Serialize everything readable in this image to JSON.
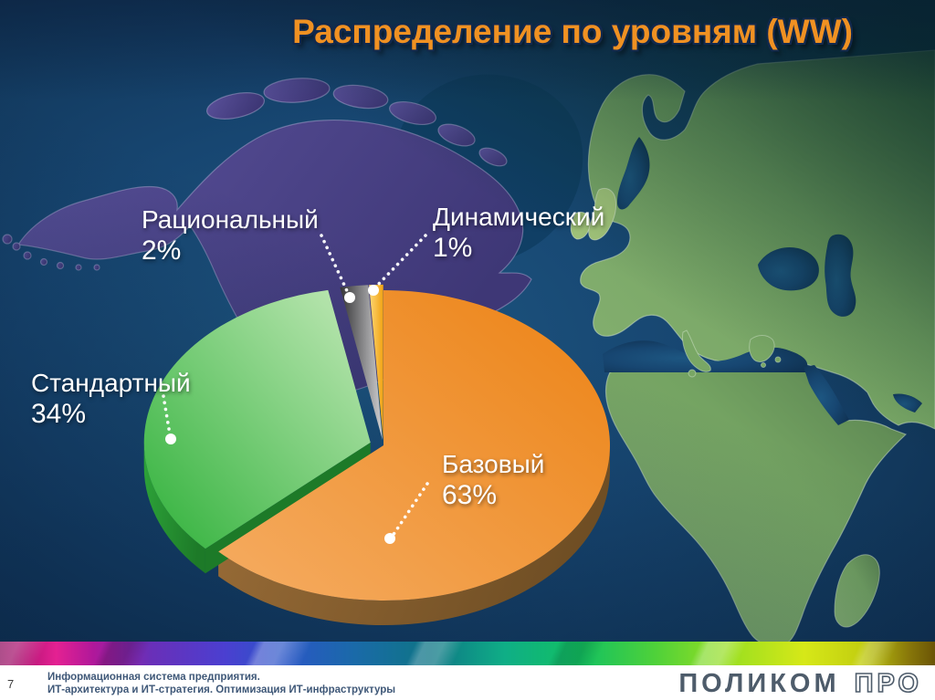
{
  "slide": {
    "title": "Распределение по уровням (WW)",
    "page_number": "7",
    "footer_line1": "Информационная система предприятия.",
    "footer_line2": "ИТ-архитектура и ИТ-стратегия. Оптимизация ИТ-инфраструктуры",
    "logo_solid": "ПОЛИКОМ",
    "logo_outline": "ПРО"
  },
  "chart_data": {
    "type": "pie",
    "style": "3d-exploded-pie",
    "title": "Распределение по уровням (WW)",
    "unit": "%",
    "direction": "clockwise",
    "start_angle_deg": 0,
    "categories": [
      "Базовый",
      "Стандартный",
      "Рациональный",
      "Динамический"
    ],
    "values": [
      63,
      34,
      2,
      1
    ],
    "slices": [
      {
        "label": "Базовый",
        "pct": 63,
        "value_text": "63%",
        "color_light": "#f5ac62",
        "color_dark": "#ec8315",
        "side_light": "#9a6d38",
        "side_dark": "#6f4e24",
        "explode": 0
      },
      {
        "label": "Стандартный",
        "pct": 34,
        "value_text": "34%",
        "color_light": "#c3e9b8",
        "color_dark": "#2fb13a",
        "side_light": "#2da339",
        "side_dark": "#1d7a28",
        "explode": 15
      },
      {
        "label": "Рациональный",
        "pct": 2,
        "value_text": "2%",
        "color_light": "#cfcfd1",
        "color_dark": "#353537",
        "side_light": "#6a6a6c",
        "side_dark": "#3a3a3c",
        "explode": 9
      },
      {
        "label": "Динамический",
        "pct": 1,
        "value_text": "1%",
        "color_light": "#ffd977",
        "color_dark": "#f0a213",
        "side_light": "#c08418",
        "side_dark": "#96660f",
        "explode": 9
      }
    ],
    "background": "world-map",
    "map_colors": {
      "ocean": "#16416b",
      "land_green": "#7aa868",
      "land_purple": "#4a4382",
      "islands_light_green": "#a3c57a",
      "greenland_teal": "#0d3a5e"
    },
    "accent_title_color": "#f09122",
    "legend": "none",
    "labels_on_chart": true
  }
}
